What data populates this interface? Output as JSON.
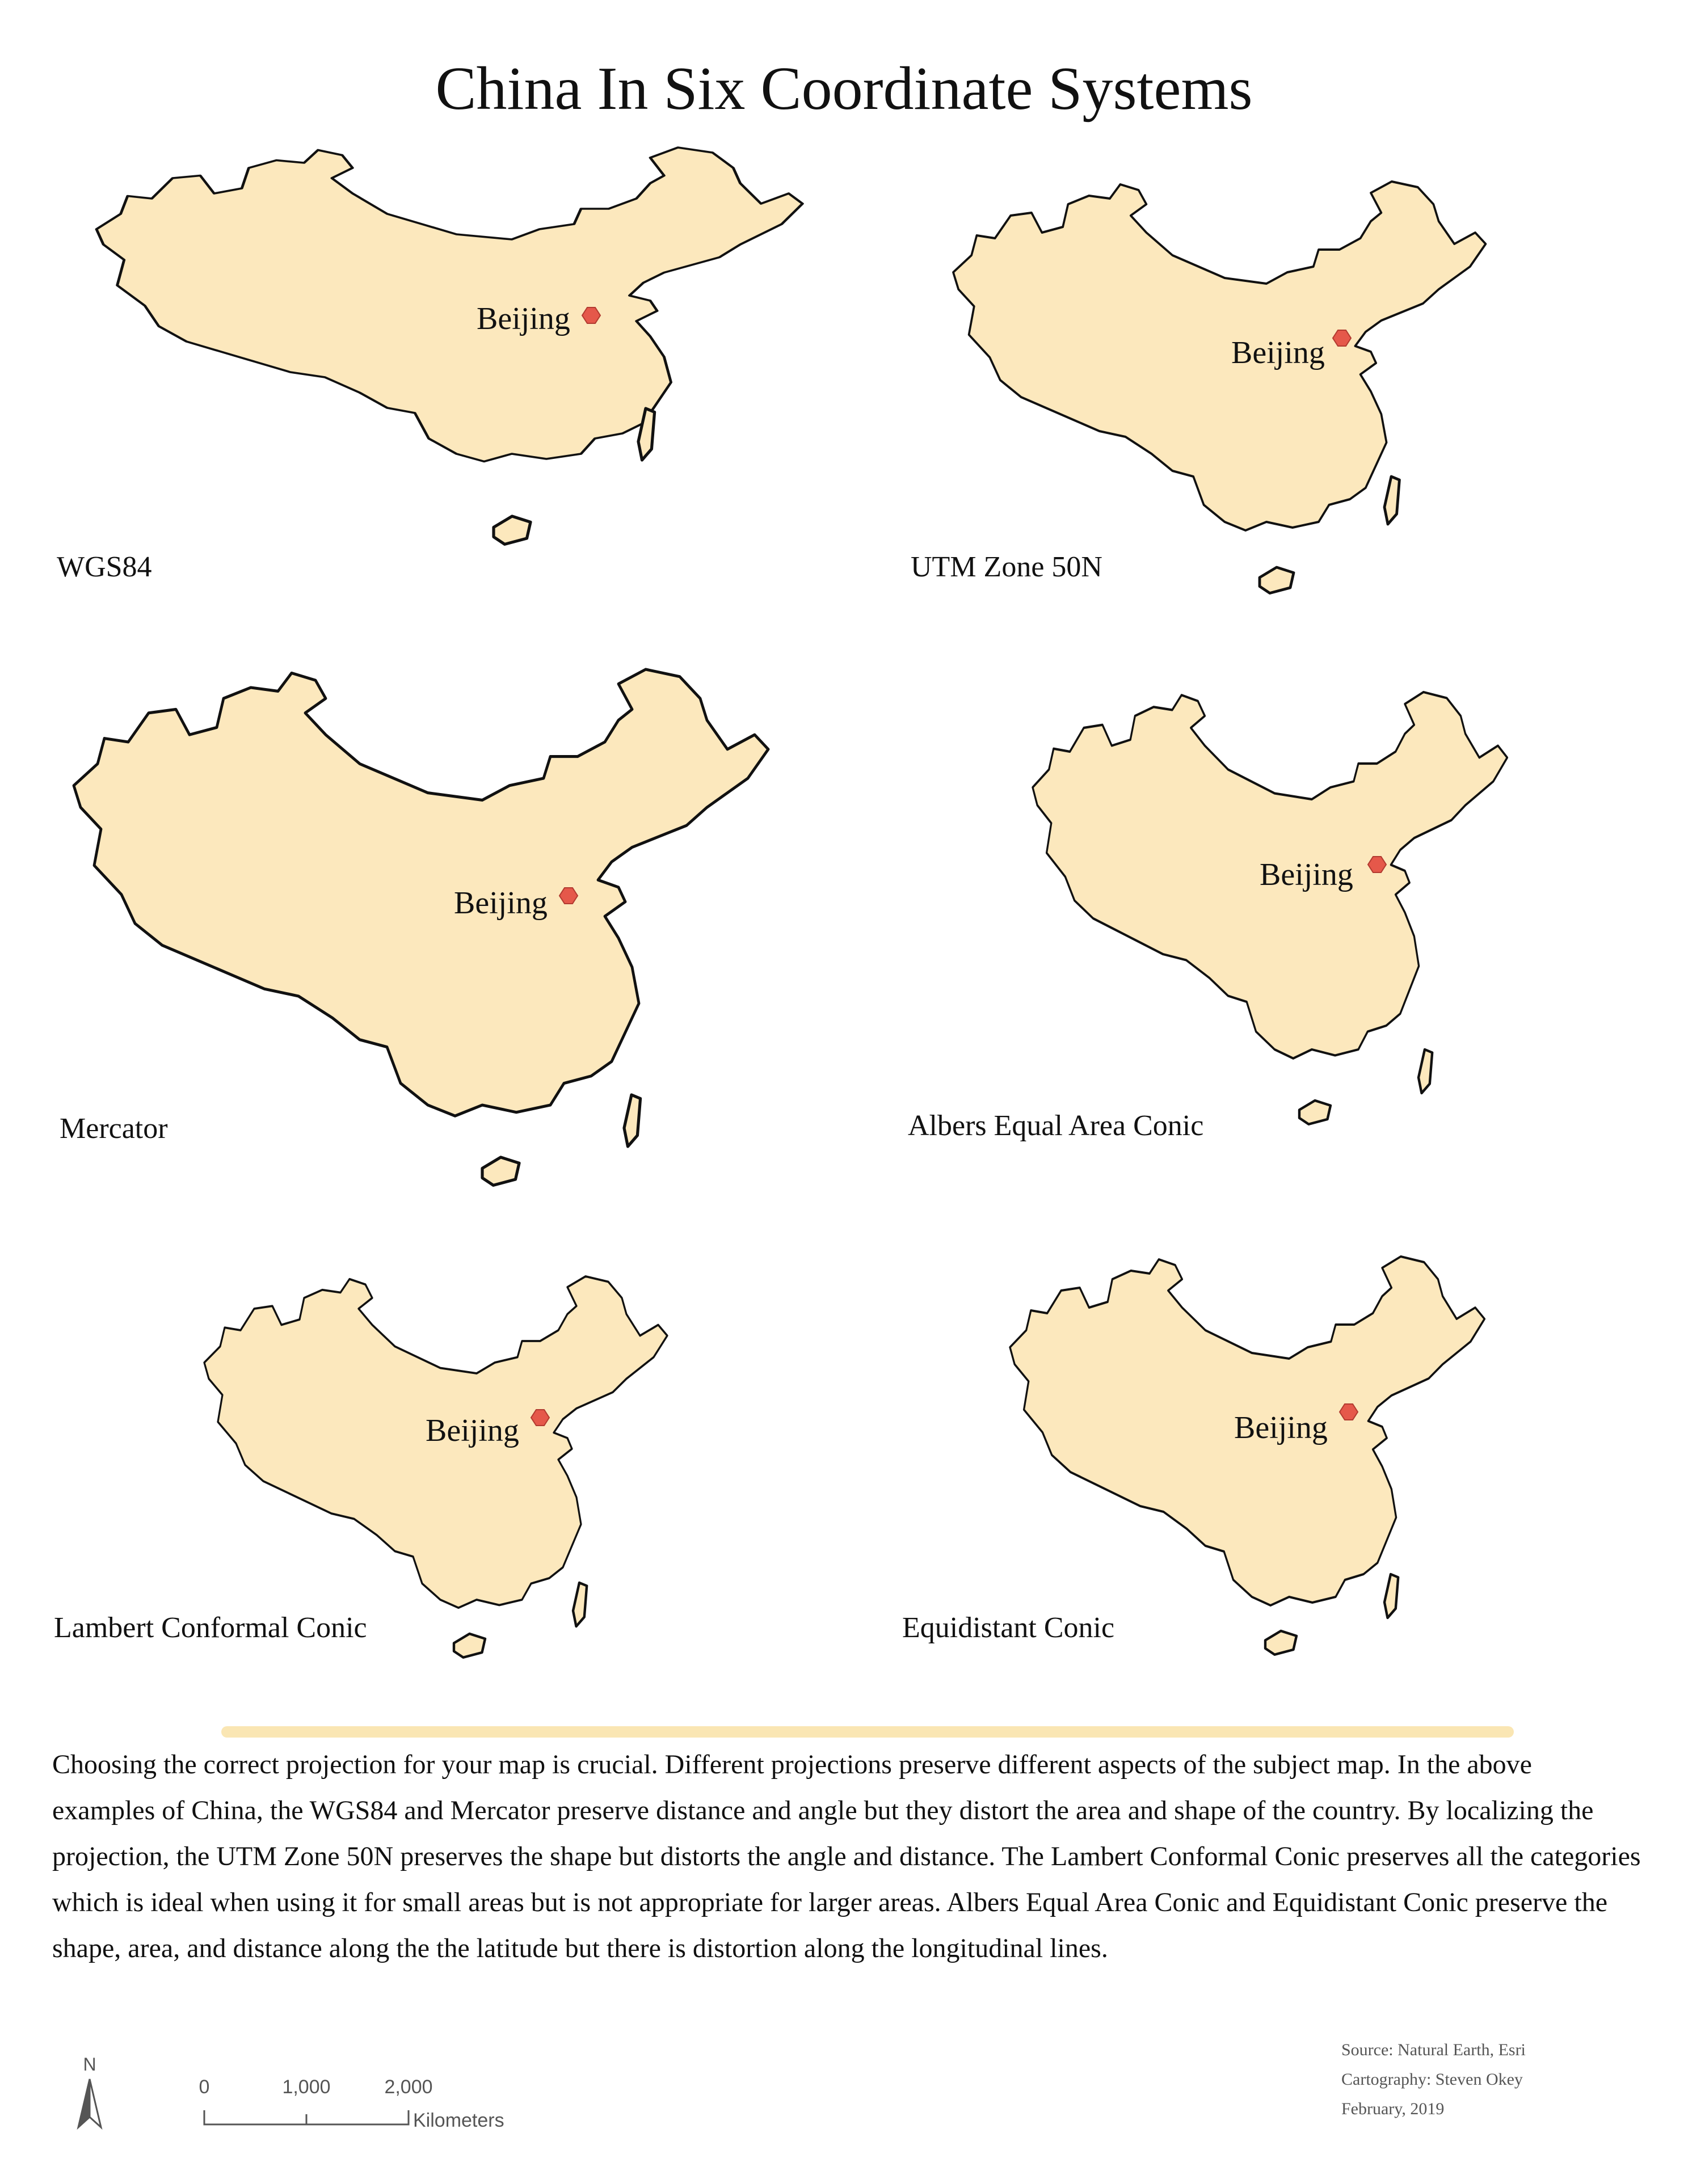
{
  "title": "China In Six Coordinate Systems",
  "city_label": "Beijing",
  "colors": {
    "land": "#fce8bd",
    "outline": "#111111",
    "marker": "#e5584a",
    "divider": "#fae6b3"
  },
  "maps": [
    {
      "projection": "WGS84"
    },
    {
      "projection": "UTM Zone 50N"
    },
    {
      "projection": "Mercator"
    },
    {
      "projection": "Albers Equal Area Conic"
    },
    {
      "projection": "Lambert Conformal Conic"
    },
    {
      "projection": "Equidistant Conic"
    }
  ],
  "description": "Choosing the correct projection for your map is crucial. Different projections preserve different aspects of the subject map. In the above examples of China, the WGS84 and Mercator preserve distance and angle but they distort the area and shape of the country.  By localizing the projection, the UTM Zone 50N preserves the shape but distorts the angle and distance. The Lambert Conformal Conic preserves all  the categories which is ideal when using it for small areas but is not appropriate for larger areas. Albers Equal Area Conic and Equidistant Conic preserve the shape, area, and distance along the the latitude but there is distortion along the longitudinal lines.",
  "credits": {
    "source": "Source: Natural Earth, Esri",
    "cartography": "Cartography: Steven Okey",
    "date": "February, 2019"
  },
  "north_arrow_label": "N",
  "scale": {
    "ticks": [
      "0",
      "1,000",
      "2,000"
    ],
    "unit": "Kilometers"
  }
}
